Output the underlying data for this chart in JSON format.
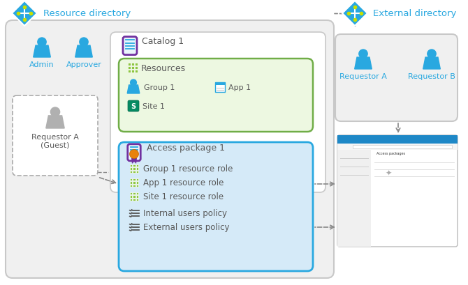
{
  "bg_color": "#ffffff",
  "resource_dir_label": "Resource directory",
  "external_dir_label": "External directory",
  "catalog_label": "Catalog 1",
  "resources_label": "Resources",
  "access_pkg_label": "Access package 1",
  "group1_label": "Group 1",
  "app1_label": "App 1",
  "site1_label": "Site 1",
  "admin_label": "Admin",
  "approver_label": "Approver",
  "requestor_a_label": "Requestor A",
  "requestor_a_guest_label": "Requestor A\n(Guest)",
  "requestor_b_label": "Requestor B",
  "access_pkg_items": [
    "Group 1 resource role",
    "App 1 resource role",
    "Site 1 resource role",
    "Internal users policy",
    "External users policy"
  ],
  "blue_color": "#29A8E0",
  "light_blue_fill": "#D9EEF8",
  "gray_fill": "#EFEFEF",
  "green_fill": "#E8F5E0",
  "green_border": "#70AD47",
  "purple_border": "#7030A0",
  "blue_border": "#29A8E0",
  "gray_border": "#C8C8C8",
  "olive_green": "#8DC63F",
  "text_blue": "#29A8E0",
  "text_gray": "#595959"
}
